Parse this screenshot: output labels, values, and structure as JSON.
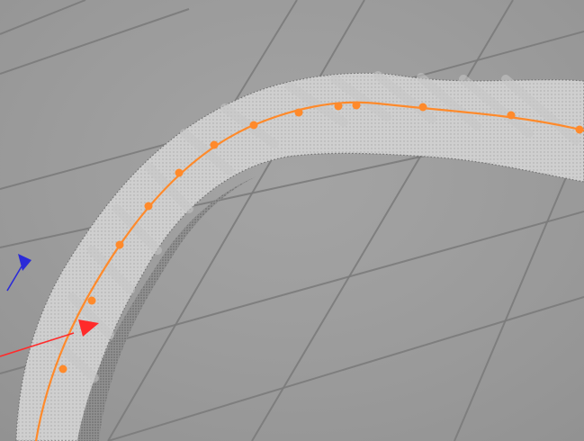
{
  "viewport": {
    "background_color": "#9e9e9e",
    "grid_color": "#7b7b7b"
  },
  "spline": {
    "color": "#ff8a2b",
    "control_point_count": 13
  },
  "axes": {
    "x_axis_color": "#ff2b2b",
    "z_axis_color": "#2b2bd8"
  },
  "rope_object": {
    "fill_color": "#cfcfcf",
    "shadow_color": "#6e6e6e"
  }
}
